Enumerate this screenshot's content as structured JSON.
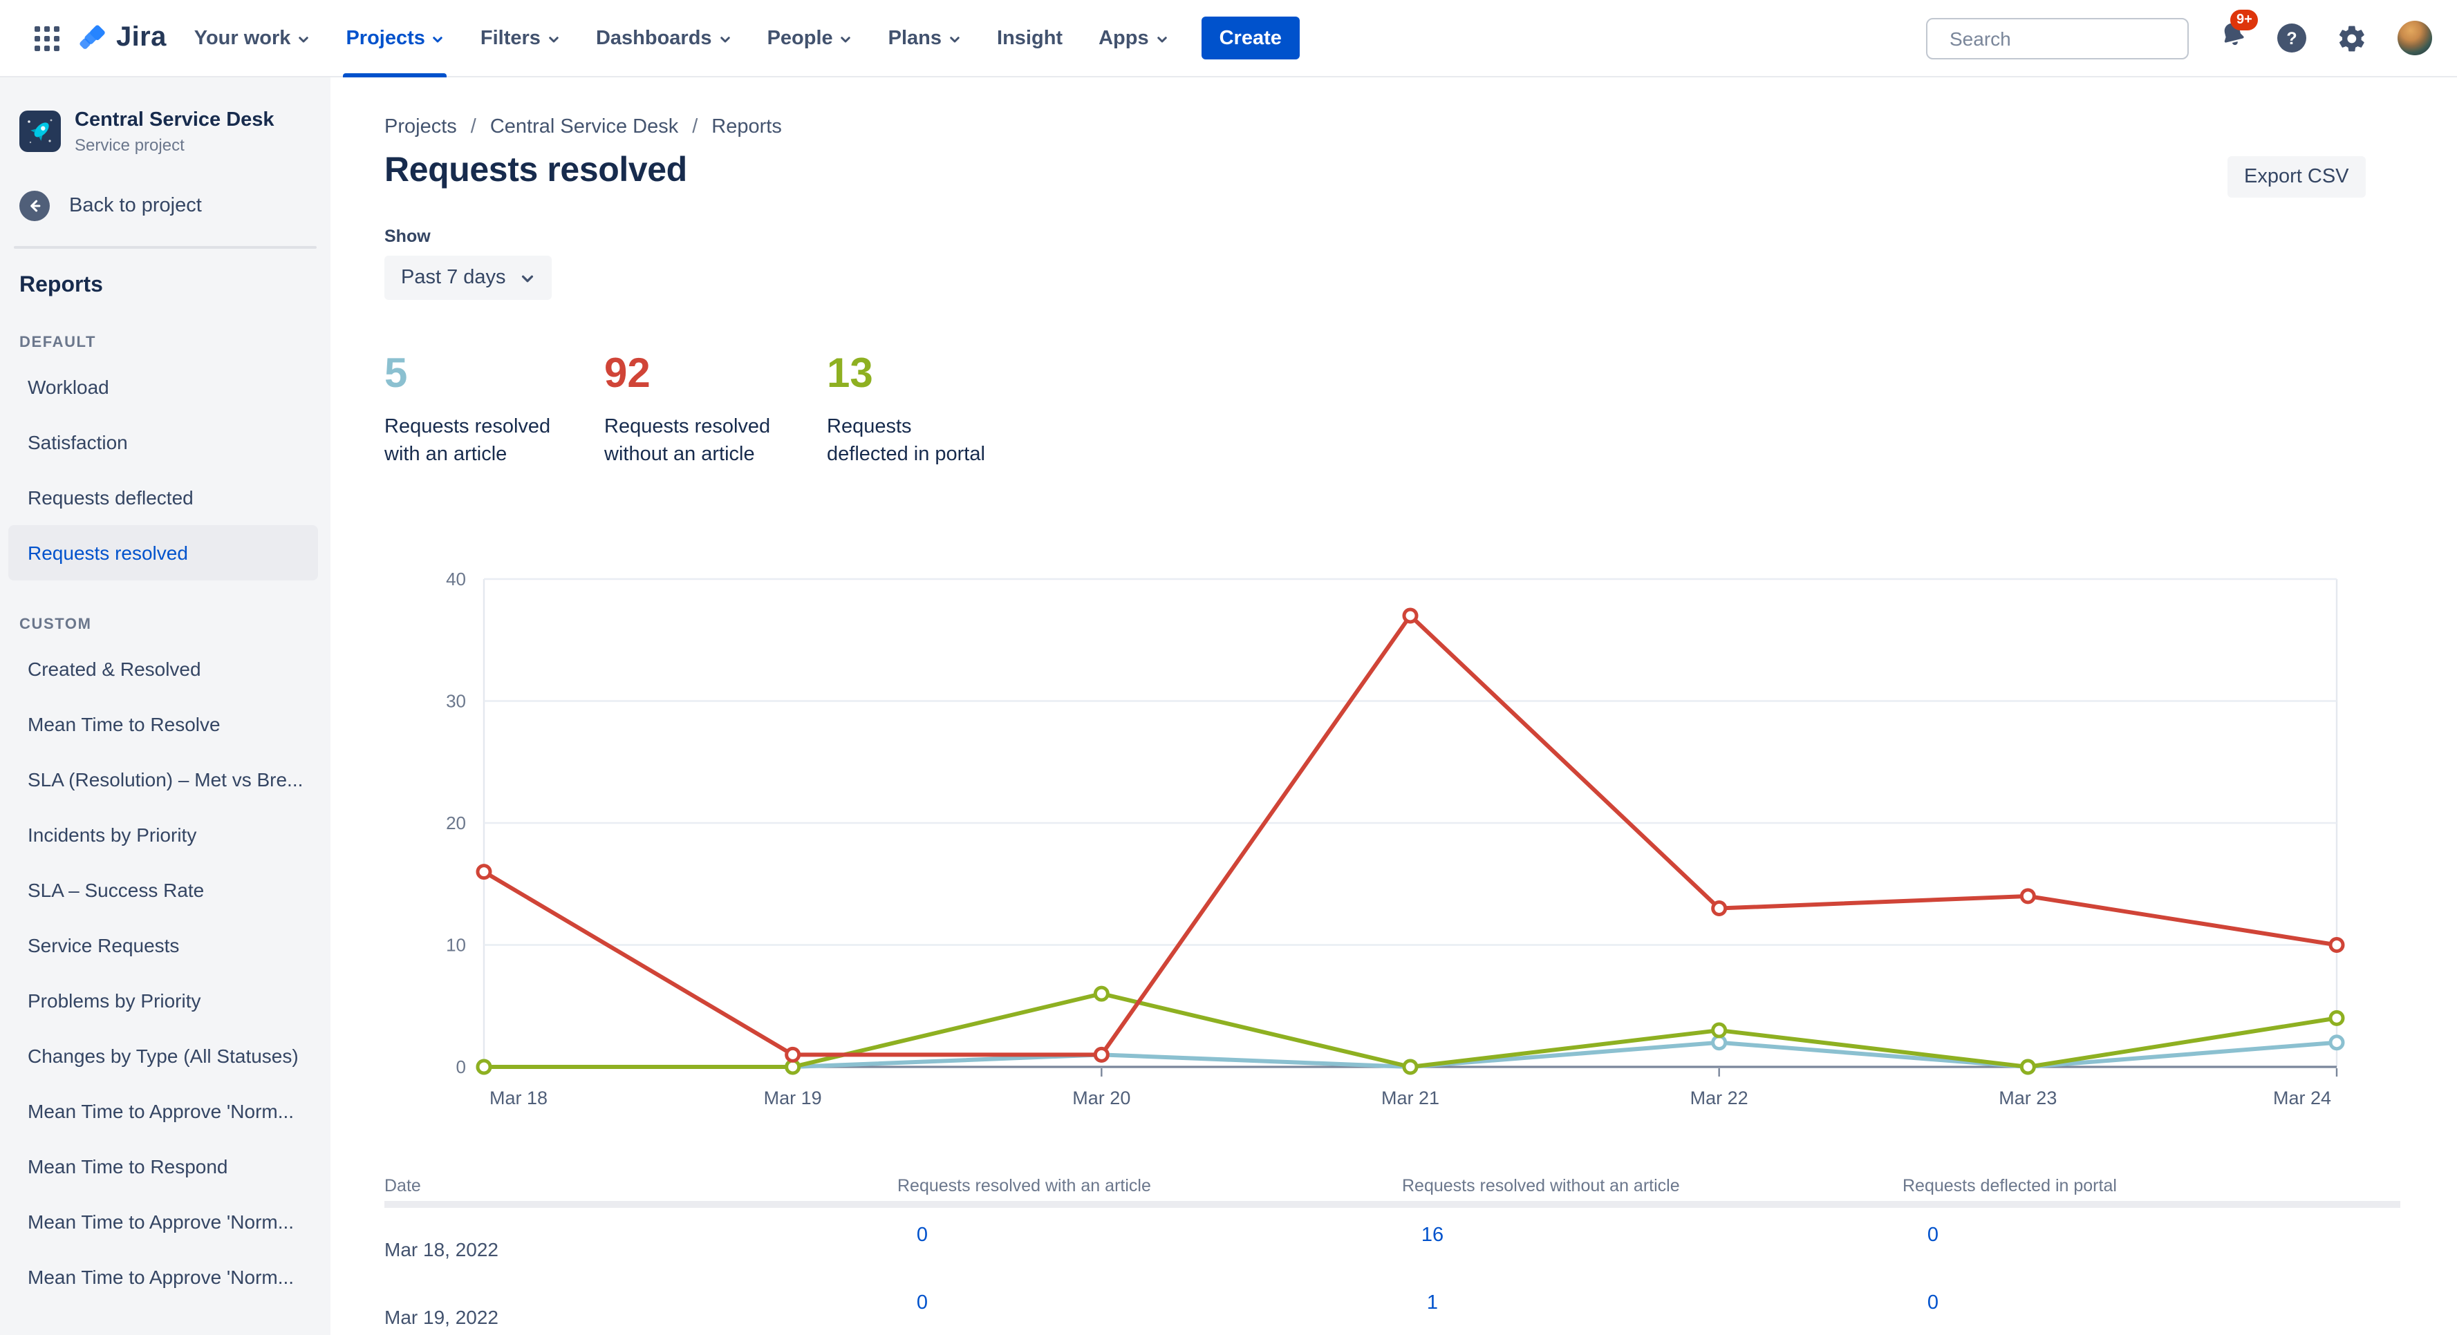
{
  "nav": {
    "brand": "Jira",
    "items": [
      {
        "label": "Your work",
        "chevron": true,
        "active": false
      },
      {
        "label": "Projects",
        "chevron": true,
        "active": true
      },
      {
        "label": "Filters",
        "chevron": true,
        "active": false
      },
      {
        "label": "Dashboards",
        "chevron": true,
        "active": false
      },
      {
        "label": "People",
        "chevron": true,
        "active": false
      },
      {
        "label": "Plans",
        "chevron": true,
        "active": false
      },
      {
        "label": "Insight",
        "chevron": false,
        "active": false
      },
      {
        "label": "Apps",
        "chevron": true,
        "active": false
      }
    ],
    "create_label": "Create",
    "search_placeholder": "Search",
    "notification_badge": "9+",
    "help_glyph": "?"
  },
  "sidebar": {
    "project_name": "Central Service Desk",
    "project_type": "Service project",
    "back_label": "Back to project",
    "section_title": "Reports",
    "groups": [
      {
        "title": "DEFAULT",
        "items": [
          "Workload",
          "Satisfaction",
          "Requests deflected",
          "Requests resolved"
        ]
      },
      {
        "title": "CUSTOM",
        "items": [
          "Created & Resolved",
          "Mean Time to Resolve",
          "SLA (Resolution) – Met vs Bre...",
          "Incidents by Priority",
          "SLA – Success Rate",
          "Service Requests",
          "Problems by Priority",
          "Changes by Type (All Statuses)",
          "Mean Time to Approve 'Norm...",
          "Mean Time to Respond",
          "Mean Time to Approve 'Norm...",
          "Mean Time to Approve 'Norm..."
        ]
      }
    ],
    "selected_item": "Requests resolved"
  },
  "main": {
    "breadcrumb": [
      "Projects",
      "Central Service Desk",
      "Reports"
    ],
    "breadcrumb_separator": "/",
    "title": "Requests resolved",
    "export_label": "Export CSV",
    "show_label": "Show",
    "period": "Past 7 days",
    "stats": [
      {
        "value": "5",
        "color": "#8BC0D0",
        "label_lines": [
          "Requests resolved",
          "with an article"
        ]
      },
      {
        "value": "92",
        "color": "#D04437",
        "label_lines": [
          "Requests resolved",
          "without an article"
        ]
      },
      {
        "value": "13",
        "color": "#8EB021",
        "label_lines": [
          "Requests",
          "deflected in portal"
        ]
      }
    ]
  },
  "chart_data": {
    "type": "line",
    "x": [
      "Mar 18",
      "Mar 19",
      "Mar 20",
      "Mar 21",
      "Mar 22",
      "Mar 23",
      "Mar 24"
    ],
    "series": [
      {
        "name": "Requests resolved with an article",
        "color": "#8BC0D0",
        "values": [
          0,
          0,
          1,
          0,
          2,
          0,
          2
        ]
      },
      {
        "name": "Requests resolved without an article",
        "color": "#D04437",
        "values": [
          16,
          1,
          1,
          37,
          13,
          14,
          10
        ]
      },
      {
        "name": "Requests deflected in portal",
        "color": "#8EB021",
        "values": [
          0,
          0,
          6,
          0,
          3,
          0,
          4
        ]
      }
    ],
    "ylim": [
      0,
      40
    ],
    "yticks": [
      0,
      10,
      20,
      30,
      40
    ],
    "grid": "horizontal",
    "legend": "none",
    "marker": "hollow-circle"
  },
  "table": {
    "headers": [
      "Date",
      "Requests resolved with an article",
      "Requests resolved without an article",
      "Requests deflected in portal"
    ],
    "rows": [
      {
        "date": "Mar 18, 2022",
        "values": [
          "0",
          "16",
          "0"
        ]
      },
      {
        "date": "Mar 19, 2022",
        "values": [
          "0",
          "1",
          "0"
        ]
      }
    ]
  }
}
